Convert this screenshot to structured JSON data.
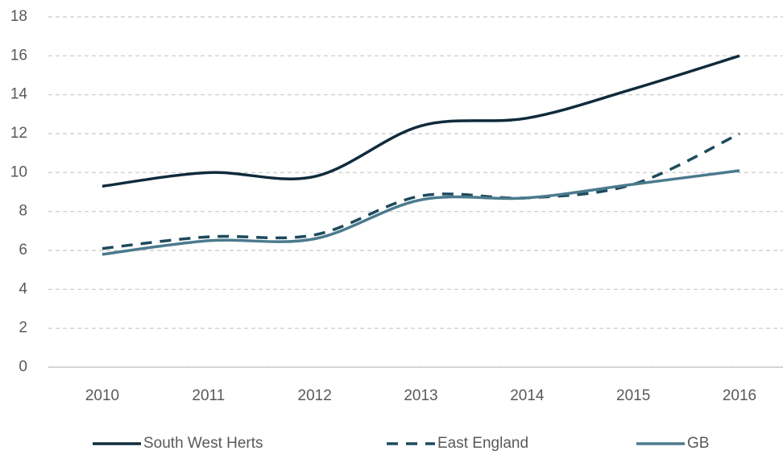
{
  "chart_data": {
    "type": "line",
    "categories": [
      "2010",
      "2011",
      "2012",
      "2013",
      "2014",
      "2015",
      "2016"
    ],
    "series": [
      {
        "name": "South West Herts",
        "color": "#0f2b3b",
        "dash": false,
        "values": [
          9.3,
          10.0,
          9.8,
          12.4,
          12.8,
          14.3,
          16.0
        ]
      },
      {
        "name": "East England",
        "color": "#1d4a5c",
        "dash": true,
        "values": [
          6.1,
          6.7,
          6.8,
          8.8,
          8.7,
          9.4,
          12.0
        ]
      },
      {
        "name": "GB",
        "color": "#4b7a8d",
        "dash": false,
        "values": [
          5.8,
          6.5,
          6.6,
          8.6,
          8.7,
          9.4,
          10.1
        ]
      }
    ],
    "ylim": [
      0,
      18
    ],
    "yticks": [
      0,
      2,
      4,
      6,
      8,
      10,
      12,
      14,
      16,
      18
    ],
    "grid": true,
    "legend": "bottom"
  }
}
